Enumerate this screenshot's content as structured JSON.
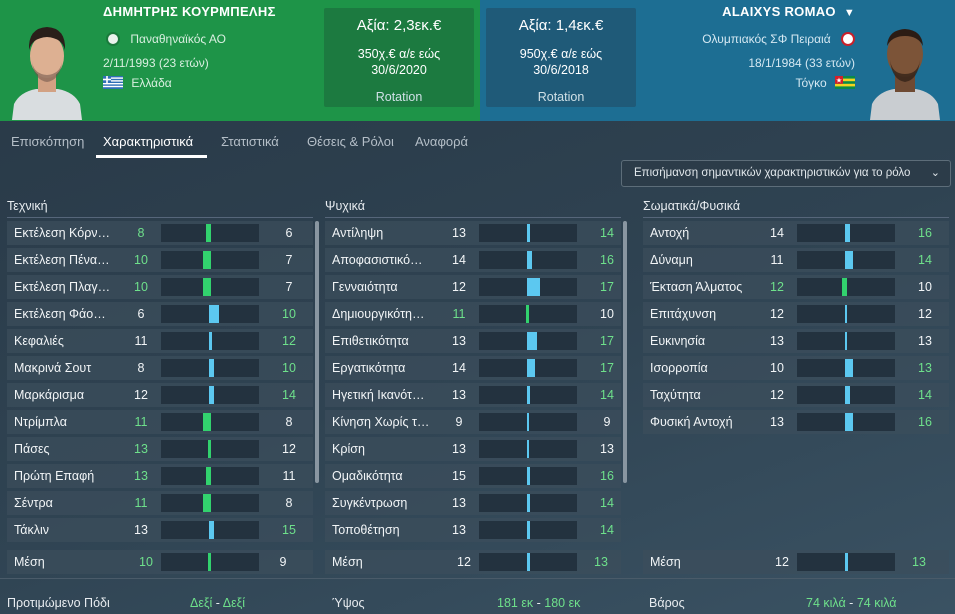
{
  "colors": {
    "green": "#6ee08b",
    "white": "#f2f5f7",
    "bar_green": "#32d26e",
    "bar_blue": "#5cc8f0",
    "left_bg": "#1e9448",
    "right_bg": "#1d6e93"
  },
  "left_player": {
    "name": "ΔΗΜΗΤΡΗΣ ΚΟΥΡΜΠΕΛΗΣ",
    "club": "Παναθηναϊκός ΑΟ",
    "birth": "2/11/1993 (23 ετών)",
    "nation": "Ελλάδα",
    "value": "Αξία: 2,3εκ.€",
    "wage_line1": "350χ.€ α/ε εώς",
    "wage_line2": "30/6/2020",
    "role": "Rotation"
  },
  "right_player": {
    "name": "ALAIXYS ROMAO",
    "club": "Ολυμπιακός ΣΦ Πειραιά",
    "birth": "18/1/1984 (33 ετών)",
    "nation": "Τόγκο",
    "value": "Αξία: 1,4εκ.€",
    "wage_line1": "950χ.€ α/ε εώς",
    "wage_line2": "30/6/2018",
    "role": "Rotation"
  },
  "tabs": [
    "Επισκόπηση",
    "Χαρακτηριστικά",
    "Στατιστικά",
    "Θέσεις & Ρόλοι",
    "Αναφορά"
  ],
  "active_tab": "Χαρακτηριστικά",
  "highlight_dropdown": "Επισήμανση σημαντικών χαρακτηριστικών για το ρόλο",
  "columns": [
    {
      "title": "Τεχνική",
      "rows": [
        {
          "label": "Εκτέλεση Κόρν…",
          "a": 8,
          "b": 6
        },
        {
          "label": "Εκτέλεση Πένα…",
          "a": 10,
          "b": 7
        },
        {
          "label": "Εκτέλεση Πλαγ…",
          "a": 10,
          "b": 7
        },
        {
          "label": "Εκτέλεση Φάο…",
          "a": 6,
          "b": 10
        },
        {
          "label": "Κεφαλιές",
          "a": 11,
          "b": 12
        },
        {
          "label": "Μακρινά Σουτ",
          "a": 8,
          "b": 10
        },
        {
          "label": "Μαρκάρισμα",
          "a": 12,
          "b": 14
        },
        {
          "label": "Ντρίμπλα",
          "a": 11,
          "b": 8
        },
        {
          "label": "Πάσες",
          "a": 13,
          "b": 12
        },
        {
          "label": "Πρώτη Επαφή",
          "a": 13,
          "b": 11
        },
        {
          "label": "Σέντρα",
          "a": 11,
          "b": 8
        },
        {
          "label": "Τάκλιν",
          "a": 13,
          "b": 15
        }
      ],
      "avg": {
        "label": "Μέση",
        "a": 10,
        "b": 9
      }
    },
    {
      "title": "Ψυχικά",
      "rows": [
        {
          "label": "Αντίληψη",
          "a": 13,
          "b": 14
        },
        {
          "label": "Αποφασιστικό…",
          "a": 14,
          "b": 16
        },
        {
          "label": "Γενναιότητα",
          "a": 12,
          "b": 17
        },
        {
          "label": "Δημιουργικότη…",
          "a": 11,
          "b": 10
        },
        {
          "label": "Επιθετικότητα",
          "a": 13,
          "b": 17
        },
        {
          "label": "Εργατικότητα",
          "a": 14,
          "b": 17
        },
        {
          "label": "Ηγετική Ικανότ…",
          "a": 13,
          "b": 14
        },
        {
          "label": "Κίνηση Χωρίς τ…",
          "a": 9,
          "b": 9
        },
        {
          "label": "Κρίση",
          "a": 13,
          "b": 13
        },
        {
          "label": "Ομαδικότητα",
          "a": 15,
          "b": 16
        },
        {
          "label": "Συγκέντρωση",
          "a": 13,
          "b": 14
        },
        {
          "label": "Τοποθέτηση",
          "a": 13,
          "b": 14
        }
      ],
      "avg": {
        "label": "Μέση",
        "a": 12,
        "b": 13
      }
    },
    {
      "title": "Σωματικά/Φυσικά",
      "rows": [
        {
          "label": "Αντοχή",
          "a": 14,
          "b": 16
        },
        {
          "label": "Δύναμη",
          "a": 11,
          "b": 14
        },
        {
          "label": "Έκταση Άλματος",
          "a": 12,
          "b": 10
        },
        {
          "label": "Επιτάχυνση",
          "a": 12,
          "b": 12
        },
        {
          "label": "Ευκινησία",
          "a": 13,
          "b": 13
        },
        {
          "label": "Ισορροπία",
          "a": 10,
          "b": 13
        },
        {
          "label": "Ταχύτητα",
          "a": 12,
          "b": 14
        },
        {
          "label": "Φυσική Αντοχή",
          "a": 13,
          "b": 16
        }
      ],
      "avg": {
        "label": "Μέση",
        "a": 12,
        "b": 13
      }
    }
  ],
  "footer": {
    "foot_label": "Προτιμώμενο Πόδι",
    "foot_a": "Δεξί",
    "foot_b": "Δεξί",
    "height_label": "Ύψος",
    "height_a": "181 εκ",
    "height_b": "180 εκ",
    "weight_label": "Βάρος",
    "weight_a": "74 κιλά",
    "weight_b": "74 κιλά"
  }
}
